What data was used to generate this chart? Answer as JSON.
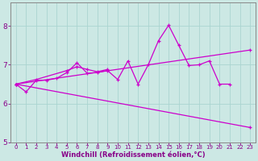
{
  "xlabel": "Windchill (Refroidissement éolien,°C)",
  "bg_color": "#cce8e4",
  "grid_color": "#aad4d0",
  "line_color": "#cc00cc",
  "spine_color": "#888888",
  "xlim": [
    -0.5,
    23.5
  ],
  "ylim": [
    5,
    8.6
  ],
  "yticks": [
    5,
    6,
    7,
    8
  ],
  "xticks": [
    0,
    1,
    2,
    3,
    4,
    5,
    6,
    7,
    8,
    9,
    10,
    11,
    12,
    13,
    14,
    15,
    16,
    17,
    18,
    19,
    20,
    21,
    22,
    23
  ],
  "line1_x": [
    0,
    1,
    2,
    3,
    4,
    5,
    6,
    7,
    8,
    9,
    10,
    11,
    12,
    13,
    14,
    15,
    16,
    17,
    18,
    19,
    20,
    21
  ],
  "line1_y": [
    6.5,
    6.3,
    6.6,
    6.6,
    6.65,
    6.8,
    7.05,
    6.78,
    6.8,
    6.85,
    6.62,
    7.1,
    6.5,
    7.0,
    7.62,
    8.02,
    7.5,
    6.98,
    7.0,
    7.1,
    6.5,
    6.5
  ],
  "line2_x": [
    0,
    2,
    5,
    6,
    7,
    8,
    9
  ],
  "line2_y": [
    6.5,
    6.62,
    6.85,
    6.95,
    6.88,
    6.82,
    6.88
  ],
  "line3_x": [
    0,
    23
  ],
  "line3_y": [
    6.5,
    5.38
  ],
  "line4_x": [
    0,
    23
  ],
  "line4_y": [
    6.5,
    7.38
  ],
  "xlabel_fontsize": 6,
  "tick_fontsize_x": 5,
  "tick_fontsize_y": 6.5,
  "label_color": "#880088",
  "marker": "+",
  "markersize": 3,
  "linewidth": 0.9
}
